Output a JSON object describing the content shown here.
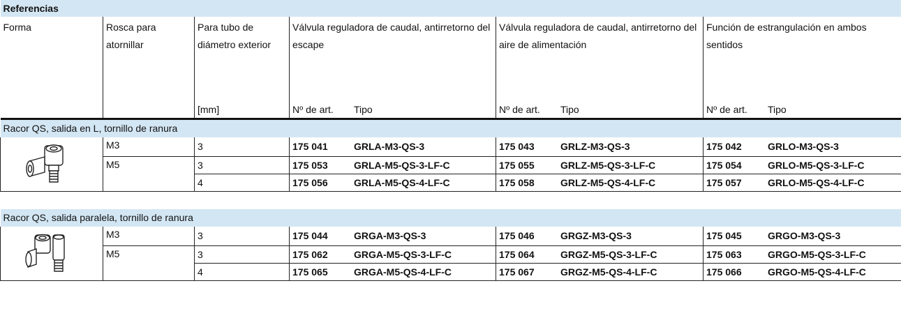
{
  "title": "Referencias",
  "header": {
    "columns": [
      "Forma",
      "Rosca para atornillar",
      "Para tubo de diámetro exterior",
      "Válvula reguladora de caudal, antirretorno del escape",
      "Válvula reguladora de caudal, antirretorno del aire de alimentación",
      "Función de estrangulación en ambos sentidos"
    ],
    "unit": "[mm]",
    "sub_art": "Nº de art.",
    "sub_tipo": "Tipo"
  },
  "sections": [
    {
      "title": "Racor QS, salida en L, tornillo de ranura",
      "groups": [
        {
          "rosca": "M3",
          "rows": [
            {
              "tubo": "3",
              "items": [
                {
                  "art": "175 041",
                  "tipo": "GRLA-M3-QS-3"
                },
                {
                  "art": "175 043",
                  "tipo": "GRLZ-M3-QS-3"
                },
                {
                  "art": "175 042",
                  "tipo": "GRLO-M3-QS-3"
                }
              ]
            }
          ]
        },
        {
          "rosca": "M5",
          "rows": [
            {
              "tubo": "3",
              "items": [
                {
                  "art": "175 053",
                  "tipo": "GRLA-M5-QS-3-LF-C"
                },
                {
                  "art": "175 055",
                  "tipo": "GRLZ-M5-QS-3-LF-C"
                },
                {
                  "art": "175 054",
                  "tipo": "GRLO-M5-QS-3-LF-C"
                }
              ]
            },
            {
              "tubo": "4",
              "items": [
                {
                  "art": "175 056",
                  "tipo": "GRLA-M5-QS-4-LF-C"
                },
                {
                  "art": "175 058",
                  "tipo": "GRLZ-M5-QS-4-LF-C"
                },
                {
                  "art": "175 057",
                  "tipo": "GRLO-M5-QS-4-LF-C"
                }
              ]
            }
          ]
        }
      ]
    },
    {
      "title": "Racor QS, salida paralela, tornillo de ranura",
      "groups": [
        {
          "rosca": "M3",
          "rows": [
            {
              "tubo": "3",
              "items": [
                {
                  "art": "175 044",
                  "tipo": "GRGA-M3-QS-3"
                },
                {
                  "art": "175 046",
                  "tipo": "GRGZ-M3-QS-3"
                },
                {
                  "art": "175 045",
                  "tipo": "GRGO-M3-QS-3"
                }
              ]
            }
          ]
        },
        {
          "rosca": "M5",
          "rows": [
            {
              "tubo": "3",
              "items": [
                {
                  "art": "175 062",
                  "tipo": "GRGA-M5-QS-3-LF-C"
                },
                {
                  "art": "175 064",
                  "tipo": "GRGZ-M5-QS-3-LF-C"
                },
                {
                  "art": "175 063",
                  "tipo": "GRGO-M5-QS-3-LF-C"
                }
              ]
            },
            {
              "tubo": "4",
              "items": [
                {
                  "art": "175 065",
                  "tipo": "GRGA-M5-QS-4-LF-C"
                },
                {
                  "art": "175 067",
                  "tipo": "GRGZ-M5-QS-4-LF-C"
                },
                {
                  "art": "175 066",
                  "tipo": "GRGO-M5-QS-4-LF-C"
                }
              ]
            }
          ]
        }
      ]
    }
  ]
}
